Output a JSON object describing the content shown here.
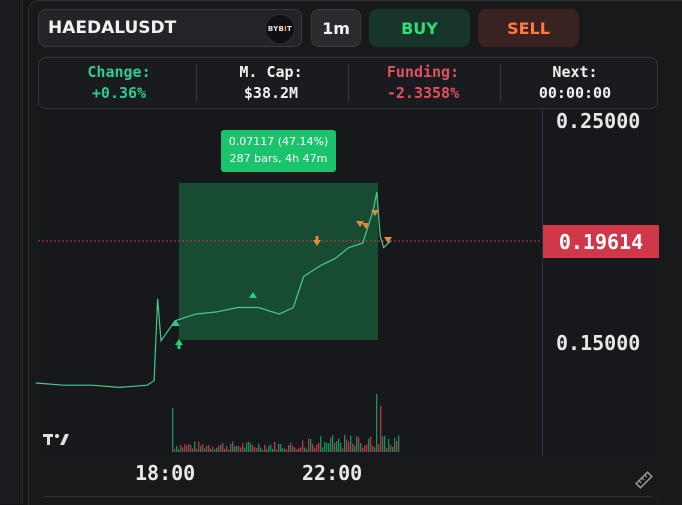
{
  "header": {
    "symbol": "HAEDALUSDT",
    "exchange_logo": "BYBIT",
    "timeframe": "1m",
    "buy_label": "BUY",
    "sell_label": "SELL"
  },
  "stats": {
    "change_label": "Change:",
    "change_value": "+0.36%",
    "mcap_label": "M. Cap:",
    "mcap_value": "$38.2M",
    "funding_label": "Funding:",
    "funding_value": "-2.3358%",
    "next_label": "Next:",
    "next_value": "00:00:00"
  },
  "chart": {
    "y_labels": [
      "0.25000",
      "0.15000"
    ],
    "current_price": "0.19614",
    "x_labels": [
      "18:00",
      "22:00"
    ],
    "measure_line1": "0.07117 (47.14%)",
    "measure_line2": "287 bars, 4h 47m",
    "logo": "TV"
  },
  "colors": {
    "up": "#2ee07a",
    "down": "#ff4d5e",
    "accent_green": "#19c46c",
    "price_tag": "#d0384a",
    "funding": "#e0525f"
  },
  "chart_data": {
    "type": "line",
    "title": "",
    "xlabel": "",
    "ylabel": "",
    "x": [
      "14:50",
      "15:30",
      "16:10",
      "16:50",
      "17:30",
      "17:40",
      "17:45",
      "17:50",
      "18:10",
      "18:40",
      "19:10",
      "19:40",
      "20:10",
      "20:40",
      "21:00",
      "21:15",
      "21:40",
      "22:00",
      "22:20",
      "22:40",
      "22:55",
      "23:00",
      "23:05",
      "23:10",
      "23:20"
    ],
    "series": [
      {
        "values": [
          0.132,
          0.131,
          0.131,
          0.13,
          0.131,
          0.133,
          0.17,
          0.151,
          0.16,
          0.163,
          0.164,
          0.166,
          0.166,
          0.163,
          0.166,
          0.18,
          0.185,
          0.188,
          0.193,
          0.195,
          0.21,
          0.218,
          0.198,
          0.193,
          0.196
        ]
      }
    ],
    "ylim": [
      0.126,
      0.258
    ],
    "current_price": 0.19614,
    "grid": false,
    "legend": "none"
  }
}
